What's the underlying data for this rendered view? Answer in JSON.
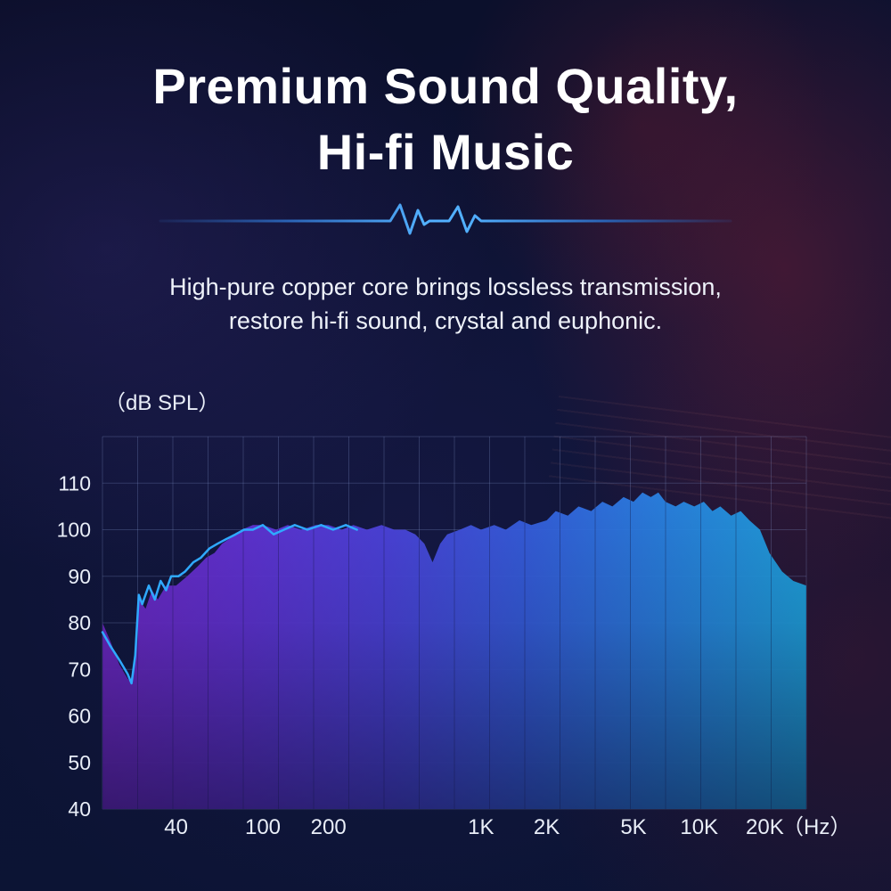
{
  "page": {
    "title_line1": "Premium Sound Quality,",
    "title_line2": "Hi-fi Music",
    "subtitle_line1": "High-pure copper core brings lossless transmission,",
    "subtitle_line2": "restore hi-fi sound, crystal and euphonic."
  },
  "chart_data": {
    "type": "area",
    "ylabel": "（dB SPL）",
    "x_unit_label": "（Hz）",
    "ylim": [
      40,
      120
    ],
    "xlim_hz": [
      18.4,
      31000
    ],
    "x_scale": "log",
    "grid": true,
    "legend": false,
    "y_ticks": [
      110,
      100,
      90,
      80,
      70,
      60,
      50,
      40
    ],
    "x_ticks": [
      {
        "label": "40",
        "f": 40
      },
      {
        "label": "100",
        "f": 100
      },
      {
        "label": "200",
        "f": 200
      },
      {
        "label": "1K",
        "f": 1000
      },
      {
        "label": "2K",
        "f": 2000
      },
      {
        "label": "5K",
        "f": 5000
      },
      {
        "label": "10K",
        "f": 10000
      },
      {
        "label": "20K",
        "f": 20000
      }
    ],
    "colors": {
      "line": "#2fa9ff",
      "grid": "rgba(138,158,215,0.25)",
      "grid_over_area": "rgba(15,18,60,0.35)",
      "divider": "#52b0ff",
      "title_text": "#ffffff",
      "area_stops": [
        [
          "0%",
          "#7b2bd9"
        ],
        [
          "20%",
          "#6a36e6"
        ],
        [
          "40%",
          "#5348ee"
        ],
        [
          "60%",
          "#3a66f0"
        ],
        [
          "80%",
          "#2b8df2"
        ],
        [
          "100%",
          "#1fb2f0"
        ]
      ]
    },
    "series": [
      {
        "name": "response-area",
        "kind": "area",
        "points": [
          [
            18.4,
            80
          ],
          [
            20,
            76
          ],
          [
            22,
            71
          ],
          [
            24,
            68
          ],
          [
            25,
            67
          ],
          [
            26,
            73
          ],
          [
            27,
            85
          ],
          [
            29,
            83
          ],
          [
            31,
            87
          ],
          [
            33,
            85
          ],
          [
            36,
            88
          ],
          [
            40,
            88
          ],
          [
            45,
            90
          ],
          [
            50,
            92
          ],
          [
            55,
            94
          ],
          [
            60,
            95
          ],
          [
            65,
            97
          ],
          [
            70,
            98
          ],
          [
            80,
            100
          ],
          [
            90,
            101
          ],
          [
            100,
            101
          ],
          [
            115,
            100
          ],
          [
            130,
            101
          ],
          [
            150,
            100
          ],
          [
            175,
            101
          ],
          [
            200,
            101
          ],
          [
            230,
            100
          ],
          [
            260,
            101
          ],
          [
            300,
            100
          ],
          [
            350,
            101
          ],
          [
            400,
            100
          ],
          [
            450,
            100
          ],
          [
            500,
            99
          ],
          [
            550,
            97
          ],
          [
            600,
            93
          ],
          [
            650,
            97
          ],
          [
            700,
            99
          ],
          [
            800,
            100
          ],
          [
            900,
            101
          ],
          [
            1000,
            100
          ],
          [
            1150,
            101
          ],
          [
            1300,
            100
          ],
          [
            1500,
            102
          ],
          [
            1700,
            101
          ],
          [
            2000,
            102
          ],
          [
            2200,
            104
          ],
          [
            2500,
            103
          ],
          [
            2800,
            105
          ],
          [
            3200,
            104
          ],
          [
            3600,
            106
          ],
          [
            4000,
            105
          ],
          [
            4500,
            107
          ],
          [
            5000,
            106
          ],
          [
            5500,
            108
          ],
          [
            6000,
            107
          ],
          [
            6500,
            108
          ],
          [
            7000,
            106
          ],
          [
            7800,
            105
          ],
          [
            8500,
            106
          ],
          [
            9500,
            105
          ],
          [
            10500,
            106
          ],
          [
            11500,
            104
          ],
          [
            12500,
            105
          ],
          [
            14000,
            103
          ],
          [
            15500,
            104
          ],
          [
            17000,
            102
          ],
          [
            19000,
            100
          ],
          [
            21000,
            95
          ],
          [
            24000,
            91
          ],
          [
            27000,
            89
          ],
          [
            31000,
            88
          ]
        ]
      },
      {
        "name": "response-line",
        "kind": "line",
        "points": [
          [
            18.4,
            78
          ],
          [
            20,
            75
          ],
          [
            22,
            72
          ],
          [
            24,
            69
          ],
          [
            25,
            67
          ],
          [
            26,
            73
          ],
          [
            27,
            86
          ],
          [
            28,
            84
          ],
          [
            30,
            88
          ],
          [
            32,
            85
          ],
          [
            34,
            89
          ],
          [
            36,
            87
          ],
          [
            38,
            90
          ],
          [
            41,
            90
          ],
          [
            44,
            91
          ],
          [
            48,
            93
          ],
          [
            52,
            94
          ],
          [
            57,
            96
          ],
          [
            62,
            97
          ],
          [
            68,
            98
          ],
          [
            75,
            99
          ],
          [
            82,
            100
          ],
          [
            90,
            100
          ],
          [
            100,
            101
          ],
          [
            112,
            99
          ],
          [
            125,
            100
          ],
          [
            140,
            101
          ],
          [
            160,
            100
          ],
          [
            185,
            101
          ],
          [
            210,
            100
          ],
          [
            240,
            101
          ],
          [
            270,
            100
          ]
        ]
      }
    ]
  }
}
